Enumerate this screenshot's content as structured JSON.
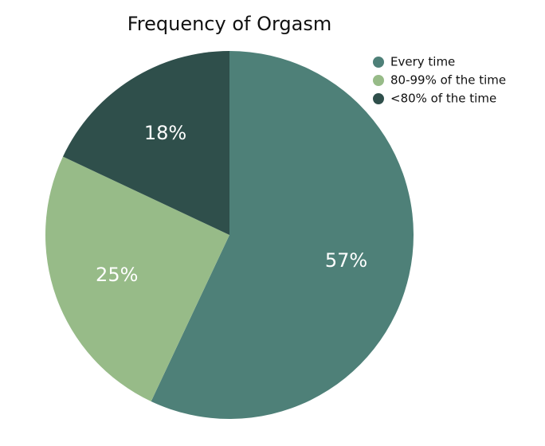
{
  "chart_data": {
    "type": "pie",
    "title": "Frequency of Orgasm",
    "categories": [
      "Every time",
      "80-99% of the time",
      "<80% of the time"
    ],
    "values": [
      57,
      25,
      18
    ],
    "value_labels": [
      "57%",
      "25%",
      "18%"
    ],
    "colors": [
      "#4e8078",
      "#97bb88",
      "#2f4f4b"
    ],
    "legend": "top-right"
  }
}
